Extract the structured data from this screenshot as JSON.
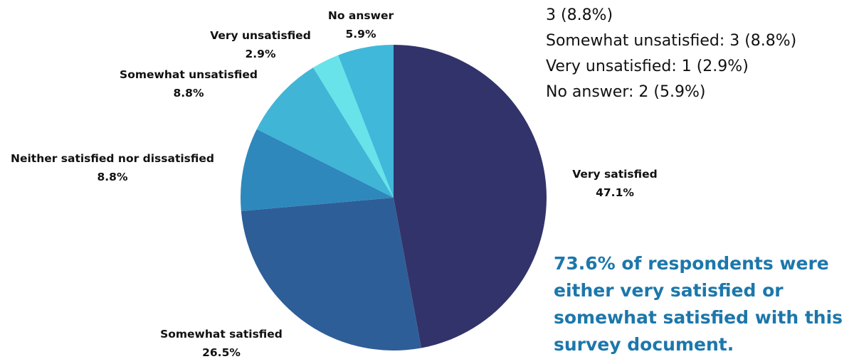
{
  "chart_data": {
    "type": "pie",
    "start_angle_deg": 0,
    "direction": "clockwise",
    "slices": [
      {
        "label": "Very satisfied",
        "value": 47.1,
        "value_label": "47.1%",
        "color": "#32336a"
      },
      {
        "label": "Somewhat satisfied",
        "value": 26.5,
        "value_label": "26.5%",
        "color": "#2e5e98"
      },
      {
        "label": "Neither satisfied nor dissatisfied",
        "value": 8.8,
        "value_label": "8.8%",
        "color": "#2e88bc"
      },
      {
        "label": "Somewhat unsatisfied",
        "value": 8.8,
        "value_label": "8.8%",
        "color": "#41b5d6"
      },
      {
        "label": "Very unsatisfied",
        "value": 2.9,
        "value_label": "2.9%",
        "color": "#68e3e9"
      },
      {
        "label": "No answer",
        "value": 5.9,
        "value_label": "5.9%",
        "color": "#40b8da"
      }
    ]
  },
  "summary_lines": [
    "3 (8.8%)",
    "Somewhat unsatisfied: 3 (8.8%)",
    "Very unsatisfied: 1 (2.9%)",
    "No answer: 2 (5.9%)"
  ],
  "callout": "73.6% of respondents were either very satisfied or somewhat satisfied with this survey document."
}
